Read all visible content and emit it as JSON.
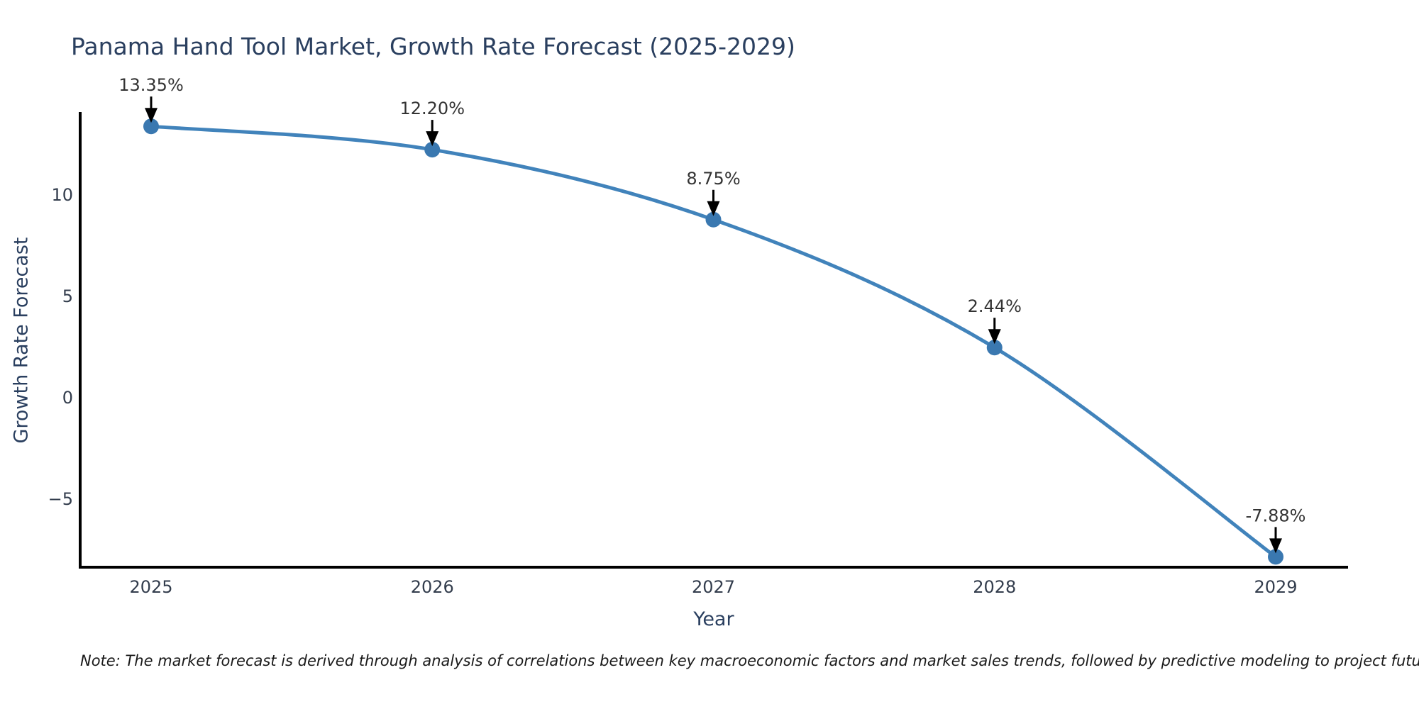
{
  "title": "Panama Hand Tool Market, Growth Rate Forecast (2025-2029)",
  "note": "Note: The market forecast is derived through analysis of correlations between key macroeconomic factors and market sales trends, followed by predictive modeling to project future sales",
  "chart_data": {
    "type": "line",
    "line_shape": "spline",
    "title": "Panama Hand Tool Market, Growth Rate Forecast (2025-2029)",
    "xlabel": "Year",
    "ylabel": "Growth Rate Forecast",
    "x": [
      2025,
      2026,
      2027,
      2028,
      2029
    ],
    "values": [
      13.35,
      12.2,
      8.75,
      2.44,
      -7.88
    ],
    "point_labels": [
      "13.35%",
      "12.20%",
      "8.75%",
      "2.44%",
      "-7.88%"
    ],
    "x_tick_labels": [
      "2025",
      "2026",
      "2027",
      "2028",
      "2029"
    ],
    "y_ticks": [
      10,
      5,
      0,
      -5
    ],
    "y_tick_labels": [
      "10",
      "5",
      "0",
      "−5"
    ],
    "ylim": [
      -8.4,
      14.0
    ],
    "grid": false,
    "legend": "none",
    "annotation_arrows": "black arrow pointing down at each data point",
    "colors": {
      "line": "#4183bb",
      "marker": "#3a78b0",
      "axis": "#000000",
      "title_text": "#2a3f5f",
      "tick_text": "#333d4d",
      "annotation_text": "#333333",
      "arrow": "#000000",
      "background": "#ffffff"
    }
  }
}
